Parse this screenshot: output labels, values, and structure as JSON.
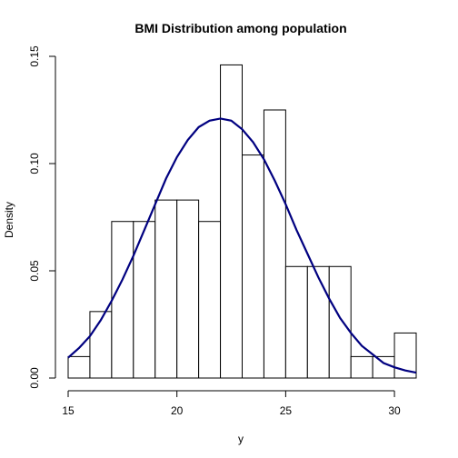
{
  "chart_data": {
    "type": "bar",
    "title": "BMI Distribution among population",
    "xlabel": "y",
    "ylabel": "Density",
    "xlim": [
      15,
      31
    ],
    "ylim": [
      0,
      0.15
    ],
    "x_ticks": [
      15,
      20,
      25,
      30
    ],
    "y_ticks": [
      0.0,
      0.05,
      0.1,
      0.15
    ],
    "x_tick_labels": [
      "15",
      "20",
      "25",
      "30"
    ],
    "y_tick_labels": [
      "0.00",
      "0.05",
      "0.10",
      "0.15"
    ],
    "bins": [
      {
        "start": 15,
        "end": 16,
        "density": 0.01
      },
      {
        "start": 16,
        "end": 17,
        "density": 0.031
      },
      {
        "start": 17,
        "end": 18,
        "density": 0.073
      },
      {
        "start": 18,
        "end": 19,
        "density": 0.073
      },
      {
        "start": 19,
        "end": 20,
        "density": 0.083
      },
      {
        "start": 20,
        "end": 21,
        "density": 0.083
      },
      {
        "start": 21,
        "end": 22,
        "density": 0.073
      },
      {
        "start": 22,
        "end": 23,
        "density": 0.146
      },
      {
        "start": 23,
        "end": 24,
        "density": 0.104
      },
      {
        "start": 24,
        "end": 25,
        "density": 0.125
      },
      {
        "start": 25,
        "end": 26,
        "density": 0.052
      },
      {
        "start": 26,
        "end": 27,
        "density": 0.052
      },
      {
        "start": 27,
        "end": 28,
        "density": 0.052
      },
      {
        "start": 28,
        "end": 29,
        "density": 0.01
      },
      {
        "start": 29,
        "end": 30,
        "density": 0.01
      },
      {
        "start": 30,
        "end": 31,
        "density": 0.021
      }
    ],
    "density_curve": {
      "color": "#000080",
      "x": [
        15.0,
        15.5,
        16.0,
        16.5,
        17.0,
        17.5,
        18.0,
        18.5,
        19.0,
        19.5,
        20.0,
        20.5,
        21.0,
        21.5,
        22.0,
        22.5,
        23.0,
        23.5,
        24.0,
        24.5,
        25.0,
        25.5,
        26.0,
        26.5,
        27.0,
        27.5,
        28.0,
        28.5,
        29.0,
        29.5,
        30.0,
        30.5,
        31.0
      ],
      "y": [
        0.0095,
        0.014,
        0.0195,
        0.027,
        0.036,
        0.046,
        0.057,
        0.069,
        0.081,
        0.093,
        0.103,
        0.111,
        0.117,
        0.12,
        0.121,
        0.12,
        0.116,
        0.11,
        0.102,
        0.092,
        0.081,
        0.069,
        0.058,
        0.047,
        0.037,
        0.028,
        0.021,
        0.015,
        0.011,
        0.007,
        0.005,
        0.0035,
        0.0025
      ]
    },
    "grid": false,
    "bar_fill": "#ffffff",
    "bar_stroke": "#000000"
  }
}
